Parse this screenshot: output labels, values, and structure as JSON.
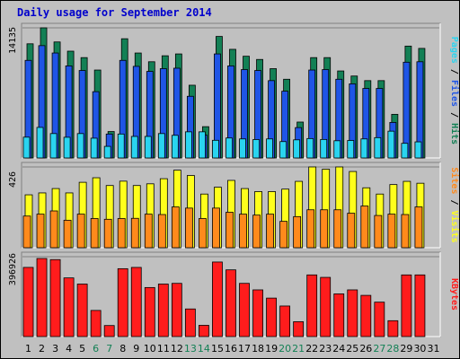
{
  "title": "Daily usage for September 2014",
  "colors": {
    "background": "#c0c0c0",
    "title": "#0000cc",
    "hits": "#138055",
    "files": "#1f55e6",
    "pages": "#2ad4f0",
    "visits": "#ffff1c",
    "sites": "#ff8a1c",
    "kbytes": "#ff1c1c",
    "weekend": "#138055",
    "weekday": "#000000"
  },
  "chart_data": [
    {
      "type": "bar",
      "categories": [
        "1",
        "2",
        "3",
        "4",
        "5",
        "6",
        "7",
        "8",
        "9",
        "10",
        "11",
        "12",
        "13",
        "14",
        "15",
        "16",
        "17",
        "18",
        "19",
        "20",
        "21",
        "22",
        "23",
        "24",
        "25",
        "26",
        "27",
        "28",
        "29",
        "30",
        "31"
      ],
      "series": [
        {
          "name": "Hits",
          "values": [
            12400,
            14135,
            12600,
            11600,
            10900,
            9550,
            2870,
            12950,
            11400,
            10450,
            11100,
            11300,
            7900,
            3400,
            13200,
            11800,
            11050,
            10700,
            9700,
            8550,
            3900,
            10900,
            10900,
            9450,
            8900,
            8400,
            8400,
            4740,
            12150,
            11900,
            0
          ]
        },
        {
          "name": "Files",
          "values": [
            10600,
            12200,
            11400,
            10000,
            9500,
            7200,
            2600,
            10600,
            9950,
            9400,
            9700,
            9750,
            6700,
            2500,
            11300,
            10000,
            9600,
            9500,
            8400,
            7250,
            3300,
            9550,
            9600,
            8550,
            8050,
            7550,
            7550,
            3860,
            10400,
            10450,
            0
          ]
        },
        {
          "name": "Pages",
          "values": [
            2260,
            3320,
            2650,
            2250,
            2650,
            2150,
            1260,
            2600,
            2340,
            2340,
            2650,
            2460,
            2840,
            2840,
            1920,
            2170,
            2070,
            2000,
            2070,
            1780,
            1970,
            2110,
            2010,
            1870,
            1900,
            2070,
            2210,
            2910,
            1590,
            1750,
            0
          ]
        }
      ],
      "ylabel": "Pages / Files / Hits",
      "ymax_label": "14135",
      "ylim": [
        0,
        14135
      ]
    },
    {
      "type": "bar",
      "categories": [
        "1",
        "2",
        "3",
        "4",
        "5",
        "6",
        "7",
        "8",
        "9",
        "10",
        "11",
        "12",
        "13",
        "14",
        "15",
        "16",
        "17",
        "18",
        "19",
        "20",
        "21",
        "22",
        "23",
        "24",
        "25",
        "26",
        "27",
        "28",
        "29",
        "30",
        "31"
      ],
      "series": [
        {
          "name": "Visits",
          "values": [
            279,
            289,
            312,
            289,
            345,
            369,
            328,
            351,
            328,
            337,
            364,
            409,
            381,
            283,
            319,
            355,
            312,
            296,
            296,
            309,
            350,
            426,
            414,
            426,
            402,
            316,
            283,
            333,
            350,
            340,
            0
          ]
        },
        {
          "name": "Sites",
          "values": [
            167,
            177,
            194,
            145,
            177,
            154,
            150,
            154,
            155,
            177,
            175,
            215,
            209,
            154,
            209,
            187,
            177,
            172,
            177,
            139,
            164,
            200,
            200,
            200,
            182,
            220,
            170,
            177,
            175,
            215,
            0
          ]
        }
      ],
      "ylabel": "Sites / Visits",
      "ymax_label": "426",
      "ylim": [
        0,
        426
      ]
    },
    {
      "type": "bar",
      "categories": [
        "1",
        "2",
        "3",
        "4",
        "5",
        "6",
        "7",
        "8",
        "9",
        "10",
        "11",
        "12",
        "13",
        "14",
        "15",
        "16",
        "17",
        "18",
        "19",
        "20",
        "21",
        "22",
        "23",
        "24",
        "25",
        "26",
        "27",
        "28",
        "29",
        "30",
        "31"
      ],
      "series": [
        {
          "name": "KBytes",
          "values": [
            343690,
            387940,
            382450,
            291530,
            260920,
            129860,
            54830,
            337270,
            343640,
            243670,
            260920,
            264380,
            137210,
            55880,
            370420,
            331470,
            264380,
            232020,
            191180,
            151820,
            73830,
            306390,
            294130,
            212140,
            232020,
            204770,
            171070,
            78860,
            306390,
            306390,
            0
          ]
        }
      ],
      "ylabel": "KBytes",
      "ymax_label": "396926",
      "ylim": [
        0,
        396926
      ]
    }
  ]
}
